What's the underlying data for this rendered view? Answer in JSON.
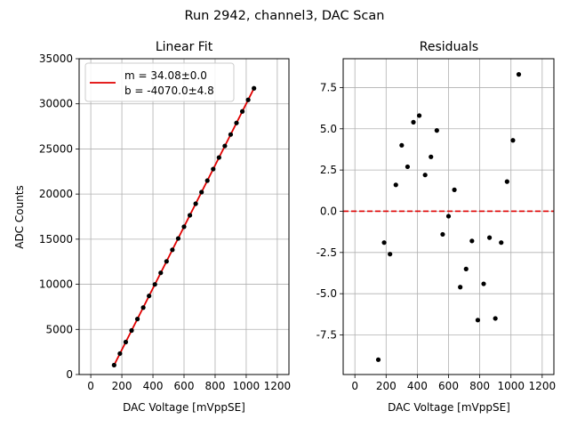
{
  "suptitle": "Run 2942, channel3, DAC Scan",
  "chart_data": [
    {
      "type": "scatter",
      "title": "Linear Fit",
      "xlabel": "DAC Voltage [mVppSE]",
      "ylabel": "ADC Counts",
      "xlim": [
        -75,
        1275
      ],
      "ylim": [
        0,
        35000
      ],
      "xticks": [
        0,
        200,
        400,
        600,
        800,
        1000,
        1200
      ],
      "yticks": [
        0,
        5000,
        10000,
        15000,
        20000,
        25000,
        30000,
        35000
      ],
      "grid": true,
      "legend": {
        "placement": "top-left",
        "entries": [
          "m = 34.08±0.0",
          "b = -4070.0±4.8"
        ]
      },
      "fit": {
        "slope": 34.08,
        "intercept": -4070.0,
        "x_range": [
          150,
          1050
        ],
        "color": "#e00000"
      },
      "series": [
        {
          "color": "#000000",
          "x": [
            150,
            187.5,
            225,
            262.5,
            300,
            337.5,
            375,
            412.5,
            450,
            487.5,
            525,
            562.5,
            600,
            637.5,
            675,
            712.5,
            750,
            787.5,
            825,
            862.5,
            900,
            937.5,
            975,
            1012.5,
            1050
          ],
          "y": [
            1040,
            2320,
            3600,
            4880,
            6150,
            7420,
            8710,
            9990,
            11270,
            12540,
            13820,
            15080,
            16380,
            17650,
            18930,
            20210,
            21490,
            22770,
            24050,
            25330,
            26600,
            27880,
            29160,
            30440,
            31720
          ]
        }
      ]
    },
    {
      "type": "scatter",
      "title": "Residuals",
      "xlabel": "DAC Voltage [mVppSE]",
      "ylabel": "",
      "xlim": [
        -75,
        1275
      ],
      "ylim": [
        -9.9,
        9.25
      ],
      "xticks": [
        0,
        200,
        400,
        600,
        800,
        1000,
        1200
      ],
      "yticks": [
        -7.5,
        -5.0,
        -2.5,
        0.0,
        2.5,
        5.0,
        7.5
      ],
      "grid": true,
      "reference_line": {
        "y": 0,
        "style": "dashed",
        "color": "#e00000"
      },
      "series": [
        {
          "color": "#000000",
          "x": [
            150,
            187.5,
            225,
            262.5,
            300,
            337.5,
            375,
            412.5,
            450,
            487.5,
            525,
            562.5,
            600,
            637.5,
            675,
            712.5,
            750,
            787.5,
            825,
            862.5,
            900,
            937.5,
            975,
            1012.5,
            1050
          ],
          "y": [
            -9.0,
            -1.9,
            -2.6,
            1.6,
            4.0,
            2.7,
            5.4,
            5.8,
            2.2,
            3.3,
            4.9,
            -1.4,
            -0.3,
            1.3,
            -4.6,
            -3.5,
            -1.8,
            -6.6,
            -4.4,
            -1.6,
            -6.5,
            -1.9,
            1.8,
            4.3,
            8.3
          ]
        }
      ]
    }
  ]
}
